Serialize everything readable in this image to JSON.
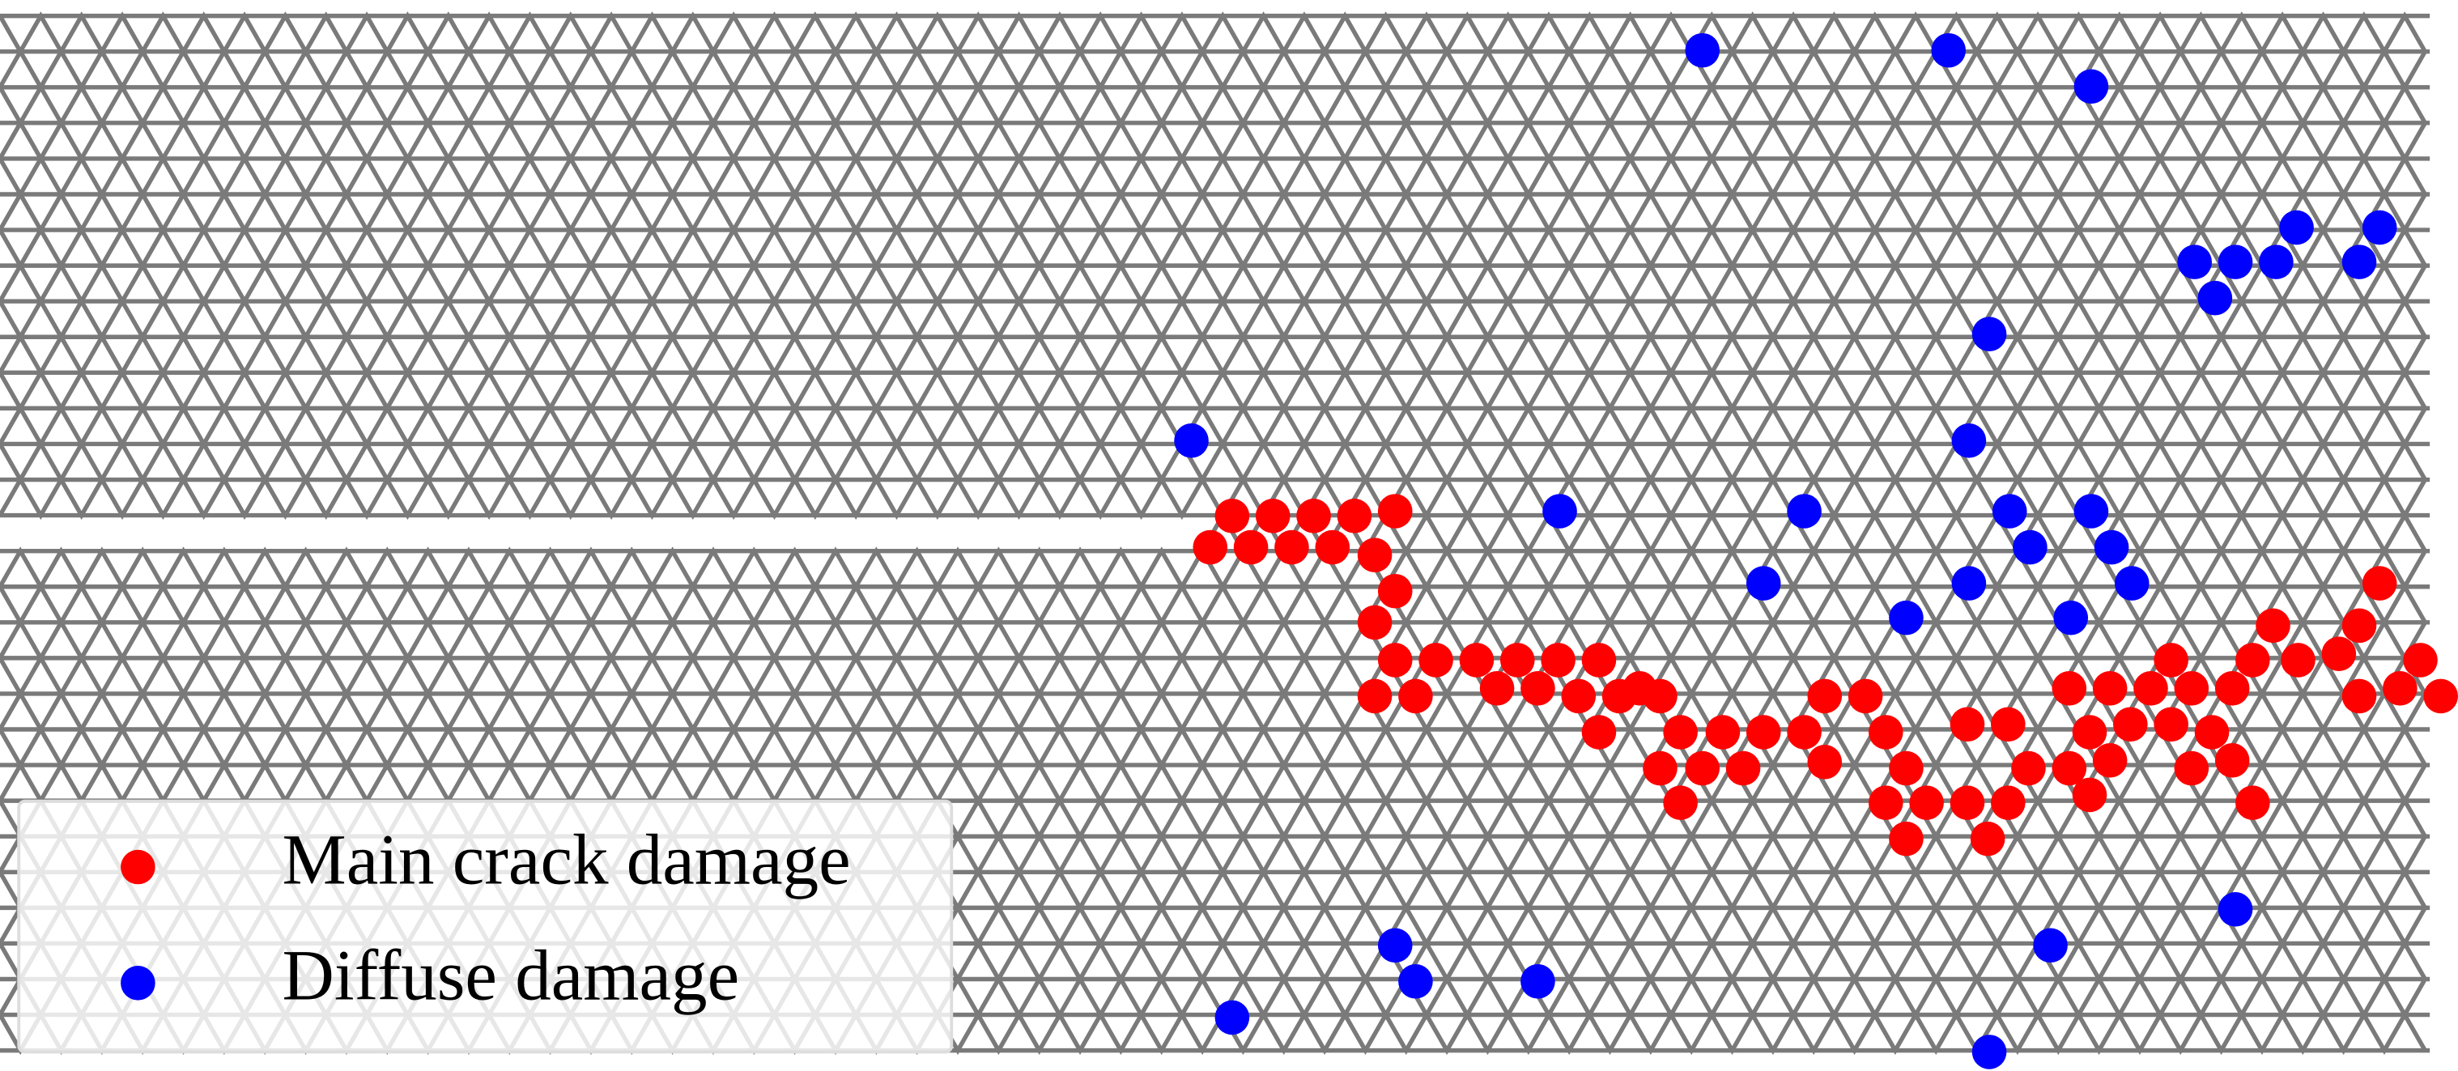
{
  "chart_data": {
    "type": "scatter",
    "xlim": [
      0,
      1568
    ],
    "ylim": [
      683,
      0
    ],
    "legend": "lower left",
    "series": [
      {
        "name": "Main crack damage",
        "color": "#ff0000",
        "x": [
          786,
          812,
          838,
          864,
          890,
          772,
          798,
          824,
          850,
          877,
          890,
          877,
          890,
          916,
          942,
          968,
          994,
          1020,
          877,
          903,
          955,
          981,
          1007,
          1033,
          1046,
          1059,
          1020,
          1072,
          1099,
          1125,
          1151,
          1164,
          1190,
          1203,
          1164,
          1059,
          1086,
          1112,
          1072,
          1216,
          1203,
          1229,
          1255,
          1281,
          1216,
          1268,
          1255,
          1281,
          1294,
          1320,
          1346,
          1320,
          1333,
          1346,
          1333,
          1359,
          1372,
          1385,
          1398,
          1411,
          1385,
          1398,
          1424,
          1437,
          1424,
          1437,
          1450,
          1466,
          1492,
          1505,
          1518,
          1505,
          1531,
          1544,
          1557
        ],
        "values": [
          329,
          329,
          329,
          329,
          326,
          349,
          349,
          349,
          349,
          354,
          377,
          397,
          421,
          421,
          421,
          421,
          421,
          421,
          444,
          444,
          439,
          439,
          444,
          444,
          439,
          444,
          467,
          467,
          467,
          467,
          467,
          444,
          444,
          467,
          486,
          490,
          490,
          490,
          512,
          490,
          512,
          512,
          512,
          512,
          535,
          535,
          462,
          462,
          490,
          439,
          439,
          490,
          507,
          485,
          467,
          462,
          439,
          421,
          439,
          467,
          462,
          490,
          485,
          512,
          439,
          421,
          399,
          421,
          417,
          399,
          372,
          444,
          439,
          421,
          444
        ]
      },
      {
        "name": "Diffuse damage",
        "color": "#0000ff",
        "x": [
          1086,
          1243,
          1334,
          1400,
          1426,
          1452,
          1465,
          1413,
          1505,
          1518,
          1269,
          760,
          1256,
          995,
          1151,
          1282,
          1334,
          1295,
          1347,
          1125,
          1256,
          1360,
          1216,
          1321,
          1426,
          1308,
          890,
          903,
          981,
          786,
          1269
        ],
        "values": [
          32,
          32,
          55,
          167,
          167,
          167,
          145,
          190,
          167,
          145,
          213,
          281,
          281,
          326,
          326,
          326,
          326,
          349,
          349,
          372,
          372,
          372,
          394,
          394,
          580,
          603,
          603,
          626,
          626,
          649,
          671
        ]
      }
    ]
  }
}
